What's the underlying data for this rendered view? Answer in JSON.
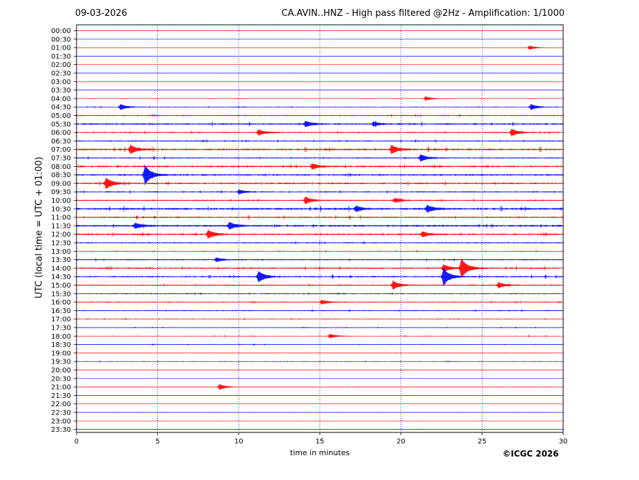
{
  "header": {
    "date": "09-03-2026",
    "title": "CA.AVIN..HNZ - High pass filtered @2Hz - Amplification: 1/1000"
  },
  "footer": {
    "copyright": "©ICGC 2026"
  },
  "colors": {
    "odd_rows": "#ff0000",
    "even_rows": "#0000ff",
    "grid": "#000080"
  },
  "chart_data": {
    "type": "line",
    "title": "CA.AVIN..HNZ - High pass filtered @2Hz - Amplification: 1/1000",
    "xlabel": "time in minutes",
    "ylabel": "UTC (local time = UTC + 01:00)",
    "xlim": [
      0,
      30
    ],
    "x_ticks": [
      0,
      5,
      10,
      15,
      20,
      25,
      30
    ],
    "vertical_grid": true,
    "rows": [
      "00:00",
      "00:30",
      "01:00",
      "01:30",
      "02:00",
      "02:30",
      "03:00",
      "03:30",
      "04:00",
      "04:30",
      "05:00",
      "05:30",
      "06:00",
      "06:30",
      "07:00",
      "07:30",
      "08:00",
      "08:30",
      "09:00",
      "09:30",
      "10:00",
      "10:30",
      "11:00",
      "11:30",
      "12:00",
      "12:30",
      "13:00",
      "13:30",
      "14:00",
      "14:30",
      "15:00",
      "15:30",
      "16:00",
      "16:30",
      "17:00",
      "17:30",
      "18:00",
      "18:30",
      "19:00",
      "19:30",
      "20:00",
      "20:30",
      "21:00",
      "21:30",
      "22:00",
      "22:30",
      "23:00",
      "23:30"
    ],
    "noise_level": [
      0.05,
      0.05,
      0.1,
      0.05,
      0.05,
      0.05,
      0.05,
      0.05,
      0.1,
      0.4,
      0.6,
      0.8,
      0.6,
      0.6,
      0.9,
      0.6,
      0.8,
      0.8,
      0.8,
      0.6,
      0.6,
      1.0,
      0.7,
      0.9,
      0.8,
      0.6,
      0.4,
      0.6,
      0.7,
      0.7,
      0.6,
      0.5,
      0.5,
      0.5,
      0.4,
      0.3,
      0.3,
      0.3,
      0.2,
      0.3,
      0.05,
      0.05,
      0.2,
      0.05,
      0.05,
      0.05,
      0.05,
      0.05
    ],
    "events": [
      {
        "row": "01:00",
        "minute": 27.9,
        "amplitude": 3
      },
      {
        "row": "04:00",
        "minute": 21.5,
        "amplitude": 3
      },
      {
        "row": "04:30",
        "minute": 2.7,
        "amplitude": 4
      },
      {
        "row": "04:30",
        "minute": 28.0,
        "amplitude": 4
      },
      {
        "row": "05:30",
        "minute": 14.1,
        "amplitude": 4
      },
      {
        "row": "05:30",
        "minute": 18.3,
        "amplitude": 3
      },
      {
        "row": "06:00",
        "minute": 11.2,
        "amplitude": 4
      },
      {
        "row": "06:00",
        "minute": 26.8,
        "amplitude": 5
      },
      {
        "row": "07:00",
        "minute": 3.3,
        "amplitude": 6
      },
      {
        "row": "07:00",
        "minute": 19.4,
        "amplitude": 6
      },
      {
        "row": "07:30",
        "minute": 21.2,
        "amplitude": 5
      },
      {
        "row": "08:00",
        "minute": 14.5,
        "amplitude": 4
      },
      {
        "row": "08:30",
        "minute": 4.2,
        "amplitude": 14
      },
      {
        "row": "09:00",
        "minute": 1.8,
        "amplitude": 8
      },
      {
        "row": "09:30",
        "minute": 10.0,
        "amplitude": 3
      },
      {
        "row": "10:00",
        "minute": 14.1,
        "amplitude": 5
      },
      {
        "row": "10:00",
        "minute": 19.6,
        "amplitude": 3
      },
      {
        "row": "10:30",
        "minute": 21.6,
        "amplitude": 5
      },
      {
        "row": "10:30",
        "minute": 17.2,
        "amplitude": 4
      },
      {
        "row": "11:30",
        "minute": 3.6,
        "amplitude": 4
      },
      {
        "row": "11:30",
        "minute": 9.4,
        "amplitude": 5
      },
      {
        "row": "12:00",
        "minute": 8.1,
        "amplitude": 6
      },
      {
        "row": "12:00",
        "minute": 21.3,
        "amplitude": 4
      },
      {
        "row": "13:30",
        "minute": 8.6,
        "amplitude": 3
      },
      {
        "row": "14:00",
        "minute": 23.7,
        "amplitude": 14
      },
      {
        "row": "14:00",
        "minute": 22.6,
        "amplitude": 5
      },
      {
        "row": "14:30",
        "minute": 11.2,
        "amplitude": 8
      },
      {
        "row": "14:30",
        "minute": 22.6,
        "amplitude": 12
      },
      {
        "row": "15:00",
        "minute": 19.5,
        "amplitude": 6
      },
      {
        "row": "15:00",
        "minute": 26.0,
        "amplitude": 4
      },
      {
        "row": "16:00",
        "minute": 15.1,
        "amplitude": 3
      },
      {
        "row": "18:00",
        "minute": 15.6,
        "amplitude": 3
      },
      {
        "row": "21:00",
        "minute": 8.8,
        "amplitude": 4
      }
    ]
  }
}
